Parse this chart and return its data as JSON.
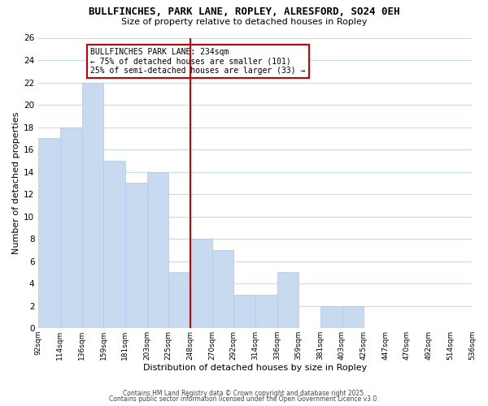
{
  "title": "BULLFINCHES, PARK LANE, ROPLEY, ALRESFORD, SO24 0EH",
  "subtitle": "Size of property relative to detached houses in Ropley",
  "xlabel": "Distribution of detached houses by size in Ropley",
  "ylabel": "Number of detached properties",
  "bar_color": "#c8daf0",
  "bar_edge_color": "#adc8e8",
  "bins": [
    "92sqm",
    "114sqm",
    "136sqm",
    "159sqm",
    "181sqm",
    "203sqm",
    "225sqm",
    "248sqm",
    "270sqm",
    "292sqm",
    "314sqm",
    "336sqm",
    "359sqm",
    "381sqm",
    "403sqm",
    "425sqm",
    "447sqm",
    "470sqm",
    "492sqm",
    "514sqm",
    "536sqm"
  ],
  "values": [
    17,
    18,
    22,
    15,
    13,
    14,
    5,
    8,
    7,
    3,
    3,
    5,
    0,
    2,
    2,
    0,
    0,
    0,
    0,
    0
  ],
  "vline_x_index": 6.5,
  "vline_color": "#cc0000",
  "annotation_title": "BULLFINCHES PARK LANE: 234sqm",
  "annotation_line1": "← 75% of detached houses are smaller (101)",
  "annotation_line2": "25% of semi-detached houses are larger (33) →",
  "annotation_box_color": "#ffffff",
  "annotation_box_edge": "#cc0000",
  "ylim": [
    0,
    26
  ],
  "yticks": [
    0,
    2,
    4,
    6,
    8,
    10,
    12,
    14,
    16,
    18,
    20,
    22,
    24,
    26
  ],
  "grid_color": "#c8daf0",
  "footer1": "Contains HM Land Registry data © Crown copyright and database right 2025.",
  "footer2": "Contains public sector information licensed under the Open Government Licence v3.0.",
  "bg_color": "#ffffff",
  "plot_bg_color": "#ffffff",
  "title_fontsize": 9,
  "subtitle_fontsize": 8,
  "xlabel_fontsize": 8,
  "ylabel_fontsize": 8,
  "xtick_fontsize": 6.5,
  "ytick_fontsize": 7.5,
  "footer_fontsize": 5.5,
  "annotation_fontsize": 7
}
